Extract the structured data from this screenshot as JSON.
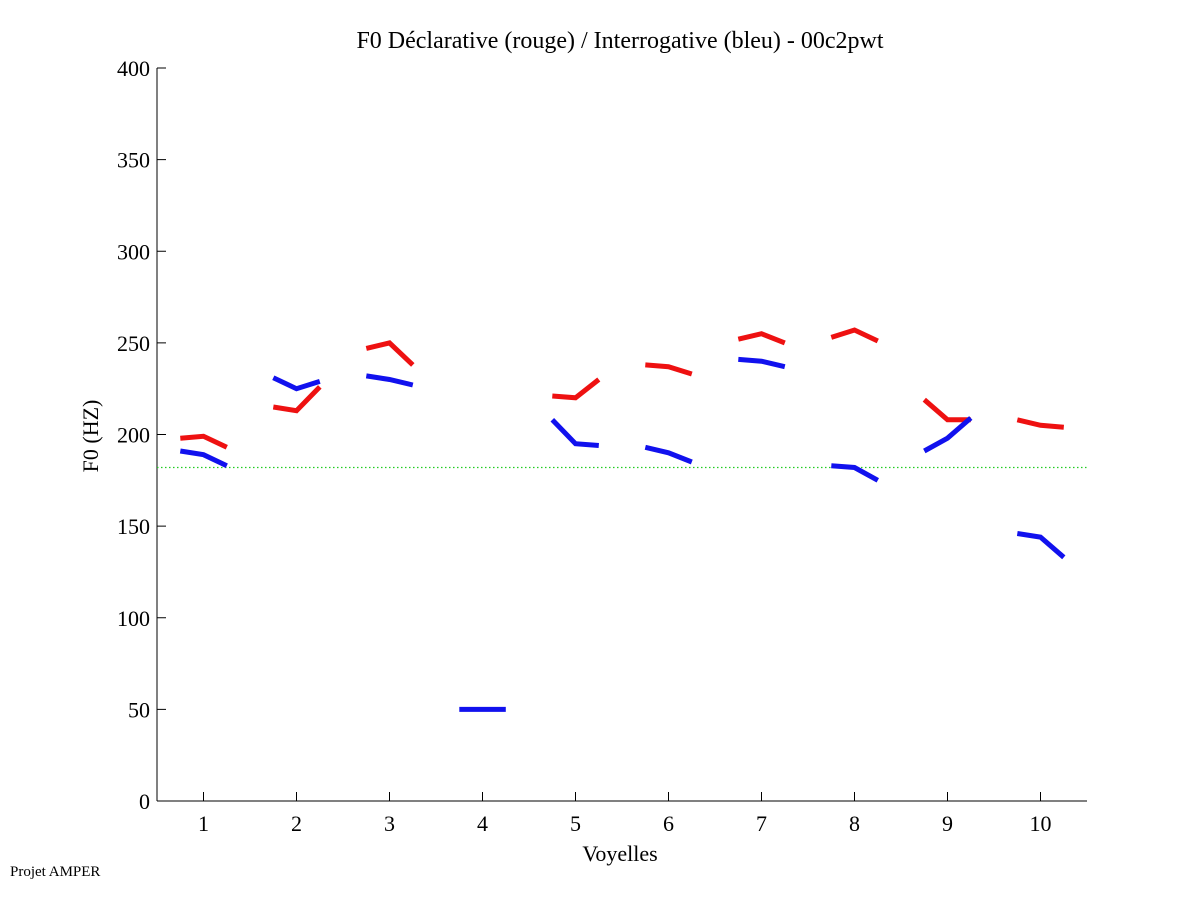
{
  "footer": {
    "label": "Projet AMPER"
  },
  "chart_data": {
    "type": "line",
    "title": "F0 Déclarative (rouge) / Interrogative (bleu) - 00c2pwt",
    "xlabel": "Voyelles",
    "ylabel": "F0 (HZ)",
    "xlim": [
      0.5,
      10.5
    ],
    "ylim": [
      0,
      400
    ],
    "xticks": [
      1,
      2,
      3,
      4,
      5,
      6,
      7,
      8,
      9,
      10
    ],
    "xtick_labels": [
      "1",
      "2",
      "3",
      "4",
      "5",
      "6",
      "7",
      "8",
      "9",
      "10"
    ],
    "yticks": [
      0,
      50,
      100,
      150,
      200,
      250,
      300,
      350,
      400
    ],
    "ytick_labels": [
      "0",
      "50",
      "100",
      "150",
      "200",
      "250",
      "300",
      "350",
      "400"
    ],
    "grid": false,
    "reference_line": {
      "y": 182,
      "color": "#22cc22",
      "style": "dotted"
    },
    "series": [
      {
        "name": "Déclarative",
        "color": "#ee1111",
        "segments": [
          {
            "vowel": 1,
            "x": [
              0.75,
              1.0,
              1.25
            ],
            "y": [
              198,
              199,
              193
            ]
          },
          {
            "vowel": 2,
            "x": [
              1.75,
              2.0,
              2.25
            ],
            "y": [
              215,
              213,
              226
            ]
          },
          {
            "vowel": 3,
            "x": [
              2.75,
              3.0,
              3.25
            ],
            "y": [
              247,
              250,
              238
            ]
          },
          {
            "vowel": 5,
            "x": [
              4.75,
              5.0,
              5.25
            ],
            "y": [
              221,
              220,
              230
            ]
          },
          {
            "vowel": 6,
            "x": [
              5.75,
              6.0,
              6.25
            ],
            "y": [
              238,
              237,
              233
            ]
          },
          {
            "vowel": 7,
            "x": [
              6.75,
              7.0,
              7.25
            ],
            "y": [
              252,
              255,
              250
            ]
          },
          {
            "vowel": 8,
            "x": [
              7.75,
              8.0,
              8.25
            ],
            "y": [
              253,
              257,
              251
            ]
          },
          {
            "vowel": 9,
            "x": [
              8.75,
              9.0,
              9.25
            ],
            "y": [
              219,
              208,
              208
            ]
          },
          {
            "vowel": 10,
            "x": [
              9.75,
              10.0,
              10.25
            ],
            "y": [
              208,
              205,
              204
            ]
          }
        ]
      },
      {
        "name": "Interrogative",
        "color": "#1111ee",
        "segments": [
          {
            "vowel": 1,
            "x": [
              0.75,
              1.0,
              1.25
            ],
            "y": [
              191,
              189,
              183
            ]
          },
          {
            "vowel": 2,
            "x": [
              1.75,
              2.0,
              2.25
            ],
            "y": [
              231,
              225,
              229
            ]
          },
          {
            "vowel": 3,
            "x": [
              2.75,
              3.0,
              3.25
            ],
            "y": [
              232,
              230,
              227
            ]
          },
          {
            "vowel": 4,
            "x": [
              3.75,
              4.0,
              4.25
            ],
            "y": [
              50,
              50,
              50
            ]
          },
          {
            "vowel": 5,
            "x": [
              4.75,
              5.0,
              5.25
            ],
            "y": [
              208,
              195,
              194
            ]
          },
          {
            "vowel": 6,
            "x": [
              5.75,
              6.0,
              6.25
            ],
            "y": [
              193,
              190,
              185
            ]
          },
          {
            "vowel": 7,
            "x": [
              6.75,
              7.0,
              7.25
            ],
            "y": [
              241,
              240,
              237
            ]
          },
          {
            "vowel": 8,
            "x": [
              7.75,
              8.0,
              8.25
            ],
            "y": [
              183,
              182,
              175
            ]
          },
          {
            "vowel": 9,
            "x": [
              8.75,
              9.0,
              9.25
            ],
            "y": [
              191,
              198,
              209
            ]
          },
          {
            "vowel": 10,
            "x": [
              9.75,
              10.0,
              10.25
            ],
            "y": [
              146,
              144,
              133
            ]
          }
        ]
      }
    ]
  }
}
